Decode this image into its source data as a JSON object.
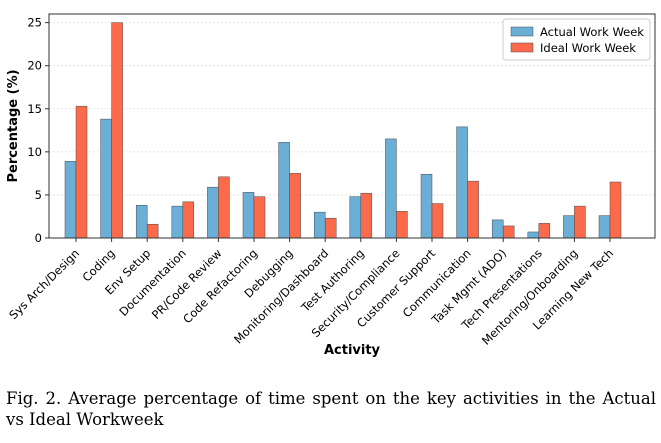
{
  "chart_data": {
    "type": "bar",
    "categories": [
      "Sys Arch/Design",
      "Coding",
      "Env Setup",
      "Documentation",
      "PR/Code Review",
      "Code Refactoring",
      "Debugging",
      "Monitoring/Dashboard",
      "Test Authoring",
      "Security/Compliance",
      "Customer Support",
      "Communication",
      "Task Mgmt (ADO)",
      "Tech Presentations",
      "Mentoring/Onboarding",
      "Learning New Tech"
    ],
    "series": [
      {
        "name": "Actual Work Week",
        "color": "#6baed6",
        "values": [
          8.9,
          13.8,
          3.8,
          3.7,
          5.9,
          5.3,
          11.1,
          3.0,
          4.8,
          11.5,
          7.4,
          12.9,
          2.1,
          0.7,
          2.6,
          2.6
        ]
      },
      {
        "name": "Ideal Work Week",
        "color": "#fb6a4a",
        "values": [
          15.3,
          25.0,
          1.6,
          4.2,
          7.1,
          4.8,
          7.5,
          2.3,
          5.2,
          3.1,
          4.0,
          6.6,
          1.4,
          1.7,
          3.7,
          6.5
        ]
      }
    ],
    "xlabel": "Activity",
    "ylabel": "Percentage (%)",
    "ylim": [
      0,
      26
    ],
    "yticks": [
      0,
      5,
      10,
      15,
      20,
      25
    ],
    "grid": true,
    "legend_position": "top-right"
  },
  "caption": "Fig. 2.  Average percentage of time spent on the key activities in the Actual vs Ideal Workweek"
}
